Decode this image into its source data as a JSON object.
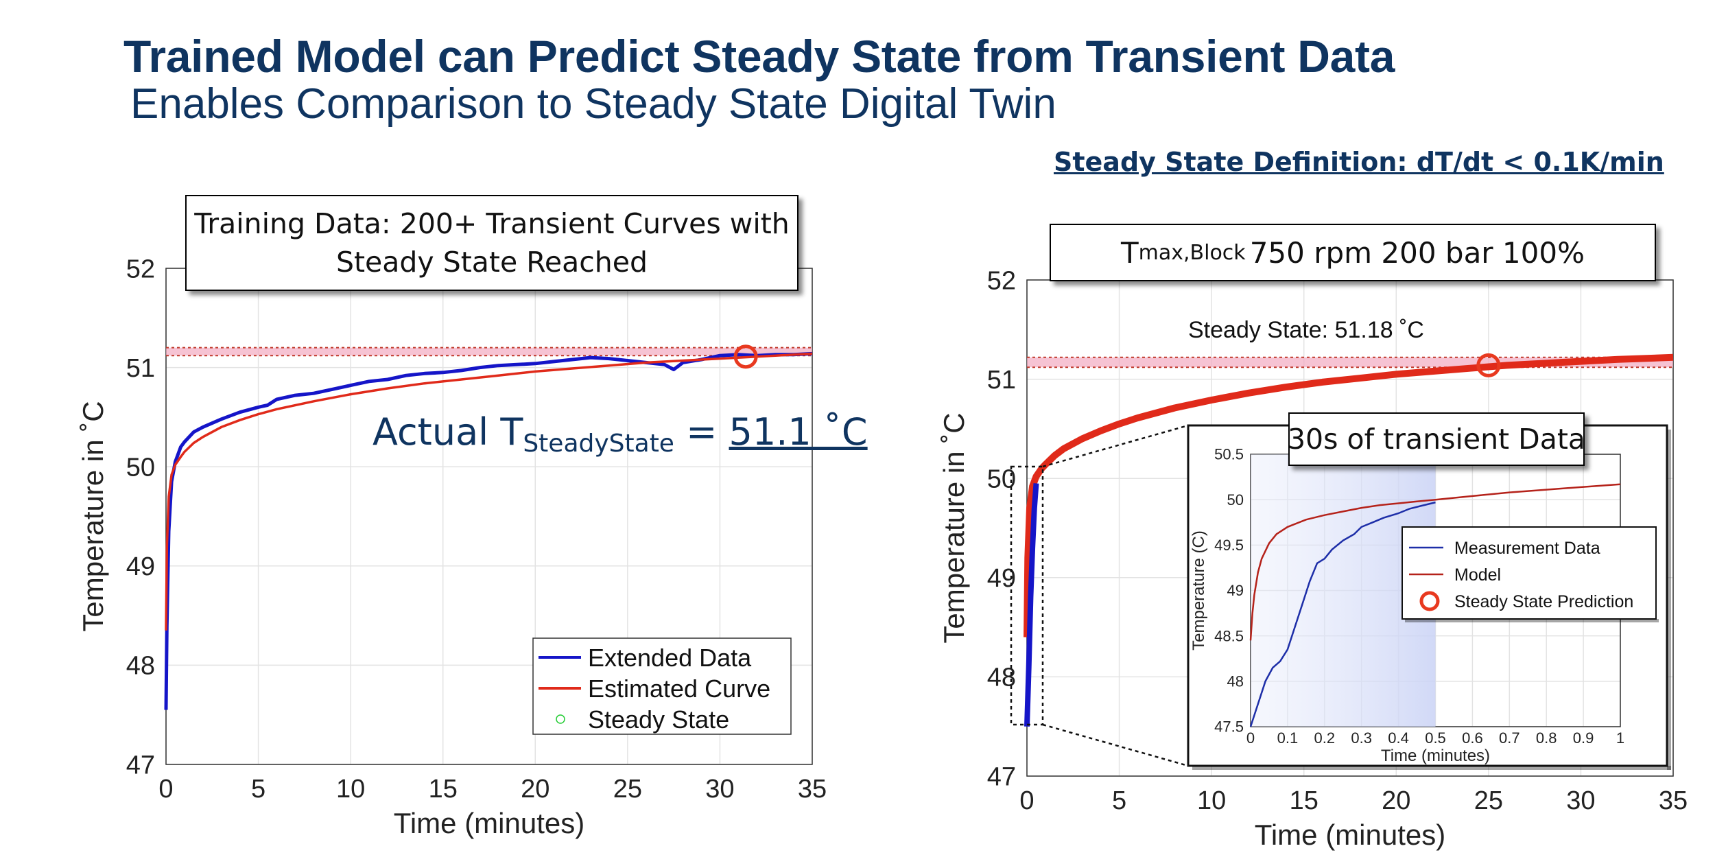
{
  "slide": {
    "title": "Trained Model can Predict Steady State from Transient Data",
    "subtitle": "Enables Comparison to Steady State Digital Twin",
    "steady_state_definition": "Steady State Definition: dT/dt  < 0.1K/min"
  },
  "left_panel": {
    "callout_line1": "Training Data: 200+ Transient Curves with",
    "callout_line2": "Steady State Reached",
    "actual_prefix": "Actual T",
    "actual_sub": "SteadyState",
    "actual_eq": " = ",
    "actual_value": "51.1 ˚C"
  },
  "right_panel": {
    "callout_T": "T",
    "callout_sub": "max,Block",
    "callout_rest": "750 rpm 200 bar 100%",
    "steady_state_label": "Steady State: 51.18 ˚C",
    "inset_callout": "30s of transient Data"
  },
  "colors": {
    "title": "#0f3460",
    "measurement": "#1515c8",
    "model": "#e02a1a",
    "band": "#f2a9c1",
    "marker": "#e8391f",
    "steady_marker_legend": "#22cc33"
  },
  "chart_data": [
    {
      "id": "left",
      "type": "line",
      "xlabel": "Time (minutes)",
      "ylabel": "Temperature in ˚C",
      "xlim": [
        0,
        35
      ],
      "ylim": [
        47,
        52
      ],
      "xticks": [
        0,
        5,
        10,
        15,
        20,
        25,
        30,
        35
      ],
      "yticks": [
        47,
        48,
        49,
        50,
        51,
        52
      ],
      "grid": true,
      "steady_band": [
        51.12,
        51.2
      ],
      "legend": [
        "Extended Data",
        "Estimated Curve",
        "Steady State"
      ],
      "legend_position": "bottom-right",
      "series": [
        {
          "name": "Extended Data",
          "x": [
            0,
            0.05,
            0.15,
            0.3,
            0.5,
            0.8,
            1,
            1.5,
            2,
            3,
            4,
            5,
            5.5,
            6,
            7,
            8,
            9,
            10,
            11,
            12,
            13,
            14,
            15,
            16,
            17,
            18,
            19,
            20,
            21,
            22,
            23,
            24,
            25,
            26,
            27,
            27.5,
            28,
            29,
            30,
            31,
            32,
            33,
            34,
            35
          ],
          "y": [
            47.55,
            48.4,
            49.35,
            49.85,
            50.05,
            50.2,
            50.25,
            50.35,
            50.4,
            50.48,
            50.55,
            50.6,
            50.62,
            50.68,
            50.72,
            50.74,
            50.78,
            50.82,
            50.86,
            50.88,
            50.92,
            50.94,
            50.95,
            50.97,
            51.0,
            51.02,
            51.03,
            51.04,
            51.06,
            51.08,
            51.1,
            51.09,
            51.07,
            51.05,
            51.03,
            50.98,
            51.05,
            51.08,
            51.12,
            51.13,
            51.12,
            51.13,
            51.13,
            51.14
          ]
        },
        {
          "name": "Estimated Curve",
          "x": [
            0,
            0.05,
            0.15,
            0.3,
            0.5,
            0.8,
            1,
            1.5,
            2,
            3,
            4,
            5,
            6,
            8,
            10,
            12,
            14,
            16,
            18,
            20,
            22,
            24,
            26,
            28,
            30,
            32,
            35
          ],
          "y": [
            48.35,
            49.2,
            49.7,
            49.92,
            50.02,
            50.1,
            50.15,
            50.24,
            50.3,
            50.4,
            50.47,
            50.53,
            50.58,
            50.66,
            50.73,
            50.79,
            50.84,
            50.88,
            50.92,
            50.96,
            50.99,
            51.02,
            51.05,
            51.07,
            51.09,
            51.11,
            51.14
          ]
        }
      ],
      "steady_state_point": {
        "x": 31.4,
        "y": 51.11
      }
    },
    {
      "id": "right",
      "type": "line",
      "xlabel": "Time (minutes)",
      "ylabel": "Temperature in ˚C",
      "xlim": [
        0,
        35
      ],
      "ylim": [
        47,
        52
      ],
      "xticks": [
        0,
        5,
        10,
        15,
        20,
        25,
        30,
        35
      ],
      "yticks": [
        47,
        48,
        49,
        50,
        51,
        52
      ],
      "grid": true,
      "steady_band": [
        51.12,
        51.22
      ],
      "series": [
        {
          "name": "Measurement Data",
          "x": [
            0,
            0.1,
            0.2,
            0.3,
            0.4,
            0.5
          ],
          "y": [
            47.5,
            48.1,
            48.8,
            49.3,
            49.7,
            49.95
          ]
        },
        {
          "name": "Model",
          "x": [
            0,
            0.05,
            0.15,
            0.3,
            0.5,
            0.8,
            1,
            1.5,
            2,
            3,
            4,
            5,
            6,
            8,
            10,
            12,
            14,
            16,
            18,
            20,
            22,
            24,
            26,
            28,
            30,
            32,
            35
          ],
          "y": [
            48.4,
            49.2,
            49.7,
            49.92,
            50.02,
            50.1,
            50.14,
            50.23,
            50.3,
            50.4,
            50.48,
            50.55,
            50.61,
            50.71,
            50.79,
            50.86,
            50.92,
            50.97,
            51.01,
            51.05,
            51.08,
            51.11,
            51.14,
            51.16,
            51.18,
            51.2,
            51.22
          ]
        }
      ],
      "steady_state_point": {
        "x": 25,
        "y": 51.14
      }
    },
    {
      "id": "inset",
      "type": "line",
      "xlabel": "Time (minutes)",
      "ylabel": "Temperature (C)",
      "xlim": [
        0,
        1
      ],
      "ylim": [
        47.5,
        50.5
      ],
      "xticks": [
        0,
        0.1,
        0.2,
        0.3,
        0.4,
        0.5,
        0.6,
        0.7,
        0.8,
        0.9,
        1
      ],
      "yticks": [
        47.5,
        48,
        48.5,
        49,
        49.5,
        50,
        50.5
      ],
      "grid": true,
      "shaded_region": [
        0,
        0.5
      ],
      "legend": [
        "Measurement Data",
        "Model",
        "Steady State Prediction"
      ],
      "legend_position": "top-right",
      "series": [
        {
          "name": "Measurement Data",
          "x": [
            0,
            0.02,
            0.04,
            0.06,
            0.08,
            0.1,
            0.12,
            0.14,
            0.16,
            0.18,
            0.2,
            0.22,
            0.25,
            0.28,
            0.3,
            0.33,
            0.36,
            0.4,
            0.43,
            0.46,
            0.5
          ],
          "y": [
            47.5,
            47.75,
            48.0,
            48.15,
            48.22,
            48.35,
            48.6,
            48.85,
            49.1,
            49.3,
            49.35,
            49.45,
            49.55,
            49.62,
            49.7,
            49.75,
            49.8,
            49.85,
            49.9,
            49.93,
            49.97
          ]
        },
        {
          "name": "Model",
          "x": [
            0,
            0.005,
            0.01,
            0.02,
            0.03,
            0.05,
            0.07,
            0.1,
            0.15,
            0.2,
            0.25,
            0.3,
            0.35,
            0.4,
            0.45,
            0.5,
            0.6,
            0.7,
            0.8,
            0.9,
            1
          ],
          "y": [
            48.45,
            48.75,
            48.95,
            49.2,
            49.35,
            49.52,
            49.62,
            49.7,
            49.78,
            49.83,
            49.87,
            49.91,
            49.94,
            49.96,
            49.98,
            50.0,
            50.04,
            50.08,
            50.11,
            50.14,
            50.17
          ]
        }
      ]
    }
  ]
}
